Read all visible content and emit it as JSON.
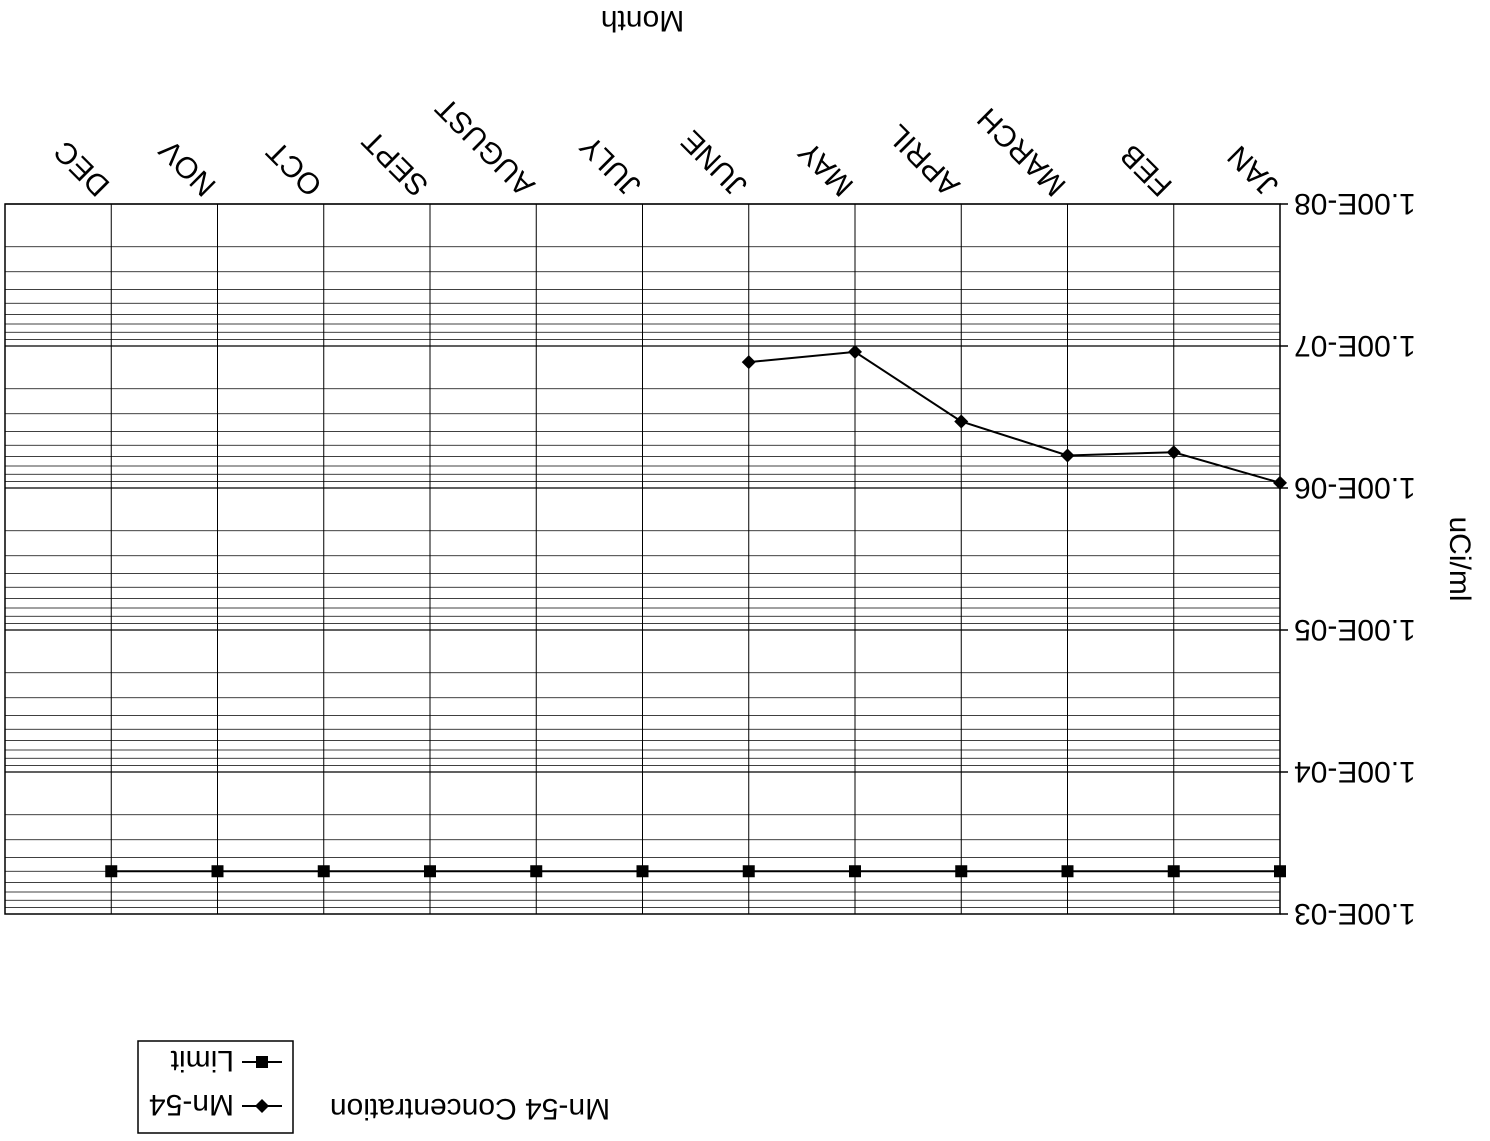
{
  "chart_data": {
    "type": "line",
    "title": "Mn-54 Concentration",
    "xlabel": "Month",
    "ylabel": "uCi/ml",
    "y_scale": "log",
    "ylim": [
      1e-08,
      0.001
    ],
    "y_ticks": [
      "1.00E-08",
      "1.00E-07",
      "1.00E-06",
      "1.00E-05",
      "1.00E-04",
      "1.00E-03"
    ],
    "grid": true,
    "legend_position": "bottom-left",
    "orientation_note": "image is rotated 180 degrees",
    "categories": [
      "JAN",
      "FEB",
      "MARCH",
      "APRIL",
      "MAY",
      "JUNE",
      "JULY",
      "AUGUST",
      "SEPT",
      "OCT",
      "NOV",
      "DEC"
    ],
    "series": [
      {
        "name": "Mn-54",
        "marker": "diamond",
        "color": "#000000",
        "values": [
          9.2e-07,
          5.6e-07,
          5.9e-07,
          3.4e-07,
          1.1e-07,
          1.3e-07,
          null,
          null,
          null,
          null,
          null,
          null
        ]
      },
      {
        "name": "Limit",
        "marker": "square",
        "color": "#000000",
        "values": [
          0.0005,
          0.0005,
          0.0005,
          0.0005,
          0.0005,
          0.0005,
          0.0005,
          0.0005,
          0.0005,
          0.0005,
          0.0005,
          0.0005
        ]
      }
    ]
  }
}
